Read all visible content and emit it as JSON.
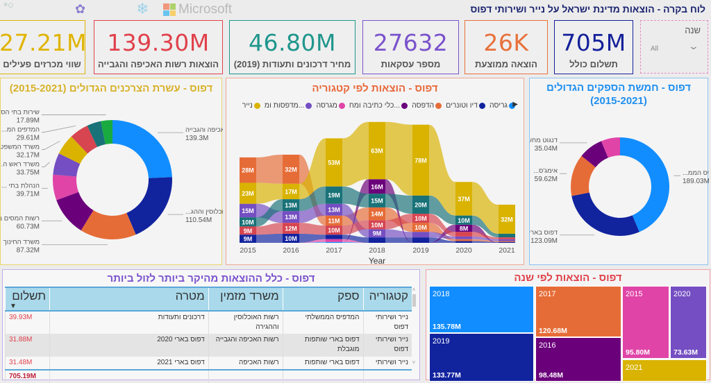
{
  "header": {
    "title": "לוח בקרה - הוצאות מדינת ישראל על נייר ושירותי דפוס"
  },
  "logos": {
    "microsoft": "Microsoft"
  },
  "slicer": {
    "label": "שנה",
    "value": "All"
  },
  "kpis": [
    {
      "value": "705M",
      "label": "תשלום כולל",
      "color": "#14209a"
    },
    {
      "value": "26K",
      "label": "הוצאה ממוצעת",
      "color": "#e8703a"
    },
    {
      "value": "27632",
      "label": "מספר עסקאות",
      "color": "#7a52cc"
    },
    {
      "value": "46.80M",
      "label": "מחיר דרכונים ותעודות (2019)",
      "color": "#1f968c"
    },
    {
      "value": "139.30M",
      "label": "הוצאות רשות האכיפה והגבייה",
      "color": "#e0414b"
    },
    {
      "value": "27.21M",
      "label": "שווי מכרזים פעילים",
      "color": "#e0b400"
    }
  ],
  "chart_data": [
    {
      "type": "pie",
      "variant": "donut",
      "title": "דפוס - עשרת הצרכנים הגדולים (2015-2021)",
      "title_color": "#d8b22a",
      "slices": [
        {
          "label": "רשות האכיפה והגבייה",
          "value_label": "139.3M",
          "value": 139.3,
          "color": "#118dff"
        },
        {
          "label": "...רשות האוכלוסין וההג",
          "value_label": "110.54M",
          "value": 110.54,
          "color": "#12239e"
        },
        {
          "label": "משרד החינוך",
          "value_label": "87.32M",
          "value": 87.32,
          "color": "#e66c37"
        },
        {
          "label": "רשות המסים בישראל",
          "value_label": "60.73M",
          "value": 60.73,
          "color": "#6b007b"
        },
        {
          "label": "... הנהלת בתי",
          "value_label": "39.71M",
          "value": 39.71,
          "color": "#e044a7"
        },
        {
          "label": "...משרד ראש ה",
          "value_label": "33.75M",
          "value": 33.75,
          "color": "#744ec2"
        },
        {
          "label": "משרד המשפטים",
          "value_label": "32.17M",
          "value": 32.17,
          "color": "#d9b300"
        },
        {
          "label": "...המדפים המ",
          "value_label": "29.61M",
          "value": 29.61,
          "color": "#d64550"
        },
        {
          "label": null,
          "value_label": null,
          "value": 22,
          "color": "#197278"
        },
        {
          "label": "שירות בתי הסוהר",
          "value_label": "17.89M",
          "value": 17.89,
          "color": "#1aab40"
        }
      ]
    },
    {
      "type": "area",
      "variant": "ribbon",
      "title": "דפוס - הוצאות לפי קטגוריה",
      "title_color": "#e8683a",
      "xlabel": "Year",
      "ylabel": "",
      "unit": "M",
      "categories": [
        "2015",
        "2016",
        "2017",
        "2018",
        "2019",
        "2020",
        "2021"
      ],
      "series": [
        {
          "name": "גריסה",
          "color": "#118dff",
          "values": [
            0,
            0,
            1,
            0,
            0,
            0,
            0
          ]
        },
        {
          "name": "דיו וטונרים",
          "color": "#12239e",
          "values": [
            9,
            10,
            5,
            6,
            6,
            2,
            1
          ]
        },
        {
          "name": "הדפסה",
          "color": "#e66c37",
          "values": [
            28,
            32,
            11,
            14,
            10,
            2,
            1
          ]
        },
        {
          "name": "...כלי כתיבה ומח",
          "color": "#6b007b",
          "values": [
            0,
            0,
            0,
            16,
            0,
            8,
            0
          ]
        },
        {
          "name": "מגרסה",
          "color": "#e044a7",
          "values": [
            0,
            0,
            3,
            0,
            0,
            0,
            0
          ]
        },
        {
          "name": "...מדפסות ומ",
          "color": "#744ec2",
          "values": [
            15,
            13,
            13,
            9,
            6,
            3,
            2
          ]
        },
        {
          "name": "נייר",
          "color": "#d9b300",
          "values": [
            23,
            17,
            53,
            63,
            78,
            37,
            32
          ]
        },
        {
          "color": "#197278",
          "values": [
            10,
            13,
            19,
            15,
            20,
            10,
            4
          ]
        },
        {
          "color": "#d64550",
          "values": [
            9,
            12,
            10,
            10,
            10,
            5,
            2
          ]
        }
      ]
    },
    {
      "type": "pie",
      "variant": "donut",
      "title": "דפוס - חמשת הספקים הגדולים (2015-2021)",
      "title_color": "#1e8ff0",
      "slices": [
        {
          "label": "...המדפיס הממ",
          "value_label": "189.03M",
          "value": 189.03,
          "color": "#118dff"
        },
        {
          "label": "דפוס בארי שותפות מוגבלת",
          "value_label": "123.09M",
          "value": 123.09,
          "color": "#12239e"
        },
        {
          "label": "...אימג'ס",
          "value_label": "59.62M",
          "value": 59.62,
          "color": "#e66c37"
        },
        {
          "label": "...דנגוט מחשבים ב",
          "value_label": "35.04M",
          "value": 35.04,
          "color": "#6b007b"
        },
        {
          "label": null,
          "value_label": null,
          "value": 27,
          "color": "#e044a7"
        }
      ]
    },
    {
      "type": "treemap",
      "title": "דפוס - הוצאות לפי שנה",
      "title_color": "#e0414b",
      "cells": [
        {
          "label": "2018",
          "value_label": "135.78M",
          "value": 135.78,
          "color": "#118dff"
        },
        {
          "label": "2019",
          "value_label": "133.77M",
          "value": 133.77,
          "color": "#12239e"
        },
        {
          "label": "2017",
          "value_label": "120.68M",
          "value": 120.68,
          "color": "#e66c37"
        },
        {
          "label": "2016",
          "value_label": "98.48M",
          "value": 98.48,
          "color": "#6b007b"
        },
        {
          "label": "2015",
          "value_label": "95.80M",
          "value": 95.8,
          "color": "#e044a7"
        },
        {
          "label": "2020",
          "value_label": "73.63M",
          "value": 73.63,
          "color": "#744ec2"
        },
        {
          "label": "2021",
          "value_label": null,
          "color": "#d9b300"
        }
      ]
    }
  ],
  "table": {
    "title": "דפוס - כלל ההוצאות מהיקר ביותר לזול ביותר",
    "title_color": "#7a52cc",
    "columns": [
      "קטגוריה",
      "ספק",
      "משרד מזמין",
      "מטרה",
      "תשלום"
    ],
    "sort_indicator": "▼",
    "rows": [
      [
        "נייר ושירותי דפוס",
        "המדפיס הממשלתי",
        "רשות האוכלוסין וההגירה",
        "דרכונים ותעודות",
        "39.93M"
      ],
      [
        "נייר ושירותי דפוס",
        "דפוס בארי שותפות מוגבלת",
        "רשות האכיפה והגבייה",
        "דפוס בארי 2020",
        "31.88M"
      ],
      [
        "נייר ושירותי",
        "דפוס בארי שותפות",
        "רשות האכיפה",
        "דפוס בארי 2021",
        "31.48M"
      ]
    ],
    "total": "705.19M"
  }
}
